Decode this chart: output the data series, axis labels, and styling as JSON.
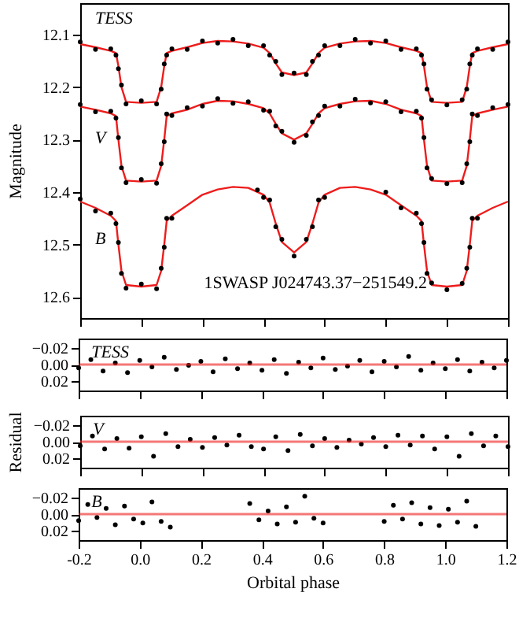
{
  "chart_data": [
    {
      "type": "scatter",
      "ylabel": "Magnitude",
      "xlim": [
        -0.2,
        1.2
      ],
      "ylim": [
        12.64,
        12.04
      ],
      "xticks": [
        -0.2,
        0,
        0.2,
        0.4,
        0.6,
        0.8,
        1,
        1.2
      ],
      "yticks": [
        12.1,
        12.2,
        12.3,
        12.4,
        12.5,
        12.6
      ],
      "tick_labels": "y",
      "annotations": [
        "TESS",
        "V",
        "B",
        "1SWASP J024743.37−251549.2"
      ],
      "series": [
        {
          "type": "scatter",
          "color": "#000000",
          "x": [
            -0.2,
            -0.15,
            -0.1,
            -0.083,
            -0.075,
            -0.065,
            -0.05,
            0,
            0.05,
            0.065,
            0.075,
            0.083,
            0.1,
            0.15,
            0.2,
            0.25,
            0.3,
            0.35,
            0.4,
            0.42,
            0.44,
            0.46,
            0.5,
            0.54,
            0.56,
            0.58,
            0.6,
            0.65,
            0.7,
            0.75,
            0.8,
            0.85,
            0.9,
            0.917,
            0.925,
            0.935,
            0.95,
            1.0,
            1.05,
            1.065,
            1.075,
            1.083,
            1.1,
            1.15,
            1.2
          ],
          "values": [
            12.114,
            12.128,
            12.127,
            12.139,
            12.165,
            12.196,
            12.232,
            12.226,
            12.232,
            12.204,
            12.156,
            12.139,
            12.127,
            12.128,
            12.112,
            12.116,
            12.109,
            12.121,
            12.121,
            12.139,
            12.151,
            12.176,
            12.173,
            12.176,
            12.151,
            12.139,
            12.121,
            12.121,
            12.109,
            12.116,
            12.112,
            12.128,
            12.127,
            12.139,
            12.156,
            12.204,
            12.224,
            12.234,
            12.224,
            12.204,
            12.156,
            12.139,
            12.127,
            12.128,
            12.114
          ]
        },
        {
          "type": "line",
          "color": "#ee1c1c",
          "x": [
            -0.2,
            -0.15,
            -0.1,
            -0.083,
            -0.075,
            -0.065,
            -0.05,
            0,
            0.05,
            0.065,
            0.075,
            0.083,
            0.1,
            0.15,
            0.2,
            0.25,
            0.3,
            0.35,
            0.4,
            0.42,
            0.44,
            0.46,
            0.5,
            0.54,
            0.56,
            0.58,
            0.6,
            0.65,
            0.7,
            0.75,
            0.8,
            0.85,
            0.9,
            0.917,
            0.925,
            0.935,
            0.95,
            1.0,
            1.05,
            1.065,
            1.075,
            1.083,
            1.1,
            1.15,
            1.2
          ],
          "values": [
            12.118,
            12.124,
            12.131,
            12.135,
            12.16,
            12.2,
            12.228,
            12.23,
            12.228,
            12.2,
            12.16,
            12.135,
            12.131,
            12.124,
            12.116,
            12.112,
            12.113,
            12.117,
            12.125,
            12.135,
            12.155,
            12.172,
            12.177,
            12.172,
            12.155,
            12.135,
            12.125,
            12.117,
            12.113,
            12.112,
            12.116,
            12.124,
            12.131,
            12.135,
            12.16,
            12.2,
            12.228,
            12.23,
            12.228,
            12.2,
            12.16,
            12.135,
            12.131,
            12.124,
            12.118
          ]
        },
        {
          "type": "scatter",
          "color": "#000000",
          "x": [
            -0.2,
            -0.15,
            -0.1,
            -0.083,
            -0.075,
            -0.065,
            -0.05,
            0,
            0.05,
            0.065,
            0.075,
            0.083,
            0.1,
            0.15,
            0.2,
            0.25,
            0.3,
            0.35,
            0.4,
            0.42,
            0.44,
            0.46,
            0.5,
            0.54,
            0.56,
            0.58,
            0.6,
            0.65,
            0.7,
            0.75,
            0.8,
            0.85,
            0.9,
            0.917,
            0.925,
            0.935,
            0.95,
            1.0,
            1.05,
            1.065,
            1.075,
            1.083,
            1.1,
            1.15,
            1.2
          ],
          "values": [
            12.233,
            12.247,
            12.246,
            12.259,
            12.296,
            12.354,
            12.382,
            12.376,
            12.383,
            12.346,
            12.304,
            12.251,
            12.254,
            12.239,
            12.236,
            12.222,
            12.231,
            12.228,
            12.244,
            12.246,
            12.274,
            12.284,
            12.305,
            12.292,
            12.266,
            12.254,
            12.236,
            12.236,
            12.223,
            12.23,
            12.228,
            12.247,
            12.246,
            12.259,
            12.296,
            12.354,
            12.374,
            12.384,
            12.382,
            12.346,
            12.304,
            12.251,
            12.254,
            12.239,
            12.233
          ]
        },
        {
          "type": "line",
          "color": "#ee1c1c",
          "x": [
            -0.2,
            -0.15,
            -0.1,
            -0.083,
            -0.075,
            -0.065,
            -0.05,
            0,
            0.05,
            0.065,
            0.075,
            0.083,
            0.1,
            0.15,
            0.2,
            0.25,
            0.3,
            0.35,
            0.4,
            0.42,
            0.44,
            0.46,
            0.5,
            0.54,
            0.56,
            0.58,
            0.6,
            0.65,
            0.7,
            0.75,
            0.8,
            0.85,
            0.9,
            0.917,
            0.925,
            0.935,
            0.95,
            1.0,
            1.05,
            1.065,
            1.075,
            1.083,
            1.1,
            1.15,
            1.2
          ],
          "values": [
            12.237,
            12.243,
            12.25,
            12.255,
            12.3,
            12.35,
            12.378,
            12.38,
            12.378,
            12.35,
            12.3,
            12.255,
            12.25,
            12.243,
            12.232,
            12.226,
            12.227,
            12.232,
            12.24,
            12.25,
            12.27,
            12.288,
            12.3,
            12.288,
            12.27,
            12.25,
            12.24,
            12.232,
            12.227,
            12.226,
            12.232,
            12.243,
            12.25,
            12.255,
            12.3,
            12.35,
            12.378,
            12.38,
            12.378,
            12.35,
            12.3,
            12.255,
            12.25,
            12.243,
            12.237
          ]
        },
        {
          "type": "scatter",
          "color": "#000000",
          "x": [
            -0.2,
            -0.15,
            -0.1,
            -0.083,
            -0.075,
            -0.065,
            -0.05,
            0,
            0.05,
            0.065,
            0.075,
            0.083,
            0.1,
            0.38,
            0.4,
            0.42,
            0.44,
            0.46,
            0.5,
            0.54,
            0.56,
            0.58,
            0.6,
            0.8,
            0.85,
            0.9,
            0.917,
            0.925,
            0.935,
            0.95,
            1.0,
            1.05,
            1.065,
            1.075,
            1.083,
            1.1
          ],
          "values": [
            12.413,
            12.436,
            12.44,
            12.46,
            12.496,
            12.555,
            12.583,
            12.575,
            12.584,
            12.545,
            12.505,
            12.45,
            12.45,
            12.396,
            12.41,
            12.415,
            12.466,
            12.49,
            12.522,
            12.49,
            12.466,
            12.415,
            12.41,
            12.4,
            12.43,
            12.44,
            12.46,
            12.496,
            12.555,
            12.573,
            12.586,
            12.574,
            12.545,
            12.505,
            12.45,
            12.45
          ]
        },
        {
          "type": "line",
          "color": "#ee1c1c",
          "x": [
            -0.2,
            -0.15,
            -0.1,
            -0.083,
            -0.075,
            -0.065,
            -0.05,
            0,
            0.05,
            0.065,
            0.075,
            0.083,
            0.1,
            0.15,
            0.2,
            0.25,
            0.3,
            0.35,
            0.4,
            0.42,
            0.44,
            0.46,
            0.5,
            0.54,
            0.56,
            0.58,
            0.6,
            0.65,
            0.7,
            0.75,
            0.8,
            0.85,
            0.9,
            0.917,
            0.925,
            0.935,
            0.95,
            1.0,
            1.05,
            1.065,
            1.075,
            1.083,
            1.1,
            1.15,
            1.2
          ],
          "values": [
            12.418,
            12.43,
            12.445,
            12.455,
            12.5,
            12.55,
            12.577,
            12.58,
            12.577,
            12.55,
            12.5,
            12.455,
            12.445,
            12.425,
            12.405,
            12.395,
            12.39,
            12.392,
            12.405,
            12.42,
            12.46,
            12.495,
            12.515,
            12.495,
            12.46,
            12.42,
            12.405,
            12.392,
            12.39,
            12.395,
            12.405,
            12.425,
            12.445,
            12.455,
            12.5,
            12.55,
            12.577,
            12.58,
            12.577,
            12.55,
            12.5,
            12.455,
            12.445,
            12.43,
            12.418
          ]
        }
      ]
    },
    {
      "type": "scatter",
      "xlim": [
        -0.2,
        1.2
      ],
      "ylim": [
        0.032,
        -0.032
      ],
      "xticks": [
        -0.2,
        0,
        0.2,
        0.4,
        0.6,
        0.8,
        1,
        1.2
      ],
      "yticks": [
        {
          "value": -0.02,
          "label": "−0.02"
        },
        {
          "value": 0,
          "label": "0.00"
        },
        {
          "value": 0.02,
          "label": "0.02"
        }
      ],
      "tick_labels": "y",
      "annotations": [
        "TESS"
      ],
      "ref_lines": [
        {
          "axis": "y",
          "value": 0,
          "color": "#ee1c1c"
        }
      ],
      "series": [
        {
          "type": "scatter",
          "color": "#000000",
          "x": [
            -0.2,
            -0.16,
            -0.12,
            -0.08,
            -0.04,
            0,
            0.04,
            0.08,
            0.12,
            0.16,
            0.2,
            0.24,
            0.28,
            0.32,
            0.36,
            0.4,
            0.44,
            0.48,
            0.52,
            0.56,
            0.6,
            0.64,
            0.68,
            0.72,
            0.76,
            0.8,
            0.84,
            0.88,
            0.92,
            0.96,
            1,
            1.04,
            1.08,
            1.12,
            1.16,
            1.2
          ],
          "values": [
            0.004,
            -0.006,
            0.008,
            -0.002,
            0.01,
            -0.005,
            0.003,
            -0.009,
            0.006,
            0.001,
            -0.004,
            0.009,
            -0.007,
            0.005,
            -0.002,
            0.007,
            -0.006,
            0.011,
            -0.003,
            0.004,
            -0.008,
            0.006,
            0.002,
            -0.005,
            0.009,
            -0.004,
            0.003,
            -0.01,
            0.007,
            -0.002,
            0.005,
            -0.006,
            0.008,
            -0.003,
            0.004,
            -0.005
          ]
        }
      ]
    },
    {
      "type": "scatter",
      "ylabel": "Residual",
      "xlim": [
        -0.2,
        1.2
      ],
      "ylim": [
        0.032,
        -0.032
      ],
      "xticks": [
        -0.2,
        0,
        0.2,
        0.4,
        0.6,
        0.8,
        1,
        1.2
      ],
      "yticks": [
        {
          "value": -0.02,
          "label": "−0.02"
        },
        {
          "value": 0,
          "label": "0.00"
        },
        {
          "value": 0.02,
          "label": "0.02"
        }
      ],
      "tick_labels": "y",
      "annotations": [
        "V"
      ],
      "ref_lines": [
        {
          "axis": "y",
          "value": 0,
          "color": "#ee1c1c"
        }
      ],
      "series": [
        {
          "type": "scatter",
          "color": "#000000",
          "x": [
            -0.2,
            -0.16,
            -0.12,
            -0.08,
            -0.04,
            0,
            0.04,
            0.08,
            0.12,
            0.16,
            0.2,
            0.24,
            0.28,
            0.32,
            0.36,
            0.4,
            0.44,
            0.48,
            0.52,
            0.56,
            0.6,
            0.64,
            0.68,
            0.72,
            0.76,
            0.8,
            0.84,
            0.88,
            0.92,
            0.96,
            1,
            1.04,
            1.08,
            1.12,
            1.16,
            1.2
          ],
          "values": [
            0.005,
            -0.007,
            0.009,
            -0.004,
            0.008,
            -0.006,
            0.018,
            -0.01,
            0.006,
            -0.003,
            0.007,
            -0.005,
            0.004,
            -0.008,
            0.006,
            0.009,
            -0.006,
            0.011,
            -0.009,
            0.005,
            -0.004,
            0.007,
            -0.002,
            0.003,
            -0.005,
            0.006,
            -0.008,
            0.004,
            -0.007,
            0.009,
            -0.006,
            0.018,
            -0.01,
            0.005,
            -0.007,
            0.006
          ]
        }
      ]
    },
    {
      "type": "scatter",
      "xlabel": "Orbital phase",
      "xlim": [
        -0.2,
        1.2
      ],
      "ylim": [
        0.032,
        -0.032
      ],
      "xticks": [
        -0.2,
        {
          "value": 0,
          "label": "0.0"
        },
        0.2,
        0.4,
        0.6,
        0.8,
        {
          "value": 1,
          "label": "1.0"
        },
        1.2
      ],
      "yticks": [
        {
          "value": -0.02,
          "label": "−0.02"
        },
        {
          "value": 0,
          "label": "0.00"
        },
        {
          "value": 0.02,
          "label": "0.02"
        }
      ],
      "annotations": [
        "B"
      ],
      "ref_lines": [
        {
          "axis": "y",
          "value": 0,
          "color": "#ee1c1c"
        }
      ],
      "series": [
        {
          "type": "scatter",
          "color": "#000000",
          "x": [
            -0.2,
            -0.17,
            -0.14,
            -0.11,
            -0.08,
            -0.05,
            -0.02,
            0.01,
            0.04,
            0.07,
            0.1,
            0.36,
            0.39,
            0.42,
            0.45,
            0.48,
            0.51,
            0.54,
            0.57,
            0.6,
            0.8,
            0.83,
            0.86,
            0.89,
            0.92,
            0.95,
            0.98,
            1.01,
            1.04,
            1.07,
            1.1
          ],
          "values": [
            0.008,
            -0.012,
            0.004,
            -0.007,
            0.013,
            -0.01,
            0.006,
            0.011,
            -0.015,
            0.009,
            0.016,
            -0.013,
            0.007,
            -0.004,
            0.012,
            -0.009,
            0.01,
            -0.022,
            0.005,
            0.011,
            0.009,
            -0.011,
            0.006,
            -0.014,
            0.012,
            -0.008,
            0.014,
            -0.006,
            0.01,
            -0.016,
            0.015
          ]
        }
      ]
    }
  ]
}
